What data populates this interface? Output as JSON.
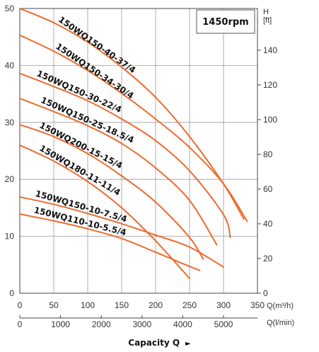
{
  "chart_data": {
    "type": "line",
    "speed_label": "1450rpm",
    "x_unit_label": "Q(m³/h)",
    "x2_unit_label": "Q(l/min)",
    "y_right_label_top": "H",
    "y_right_label_unit": "[ft]",
    "caption": "Capacity Q",
    "caption_arrow": "►",
    "xlim": [
      0,
      350
    ],
    "ylim": [
      0,
      50
    ],
    "x_ticks": [
      0,
      50,
      100,
      150,
      200,
      250,
      300,
      350
    ],
    "y_ticks": [
      0,
      10,
      20,
      30,
      40,
      50
    ],
    "x2_ticks": [
      0,
      1000,
      2000,
      3000,
      4000,
      5000
    ],
    "y_right_ticks": [
      0,
      20,
      40,
      60,
      80,
      100,
      120,
      140
    ],
    "grid": true,
    "series": [
      {
        "name": "150WQ150-40-37/4",
        "x": [
          0,
          50,
          100,
          150,
          200,
          250,
          300,
          330
        ],
        "y": [
          50,
          47.5,
          44.1,
          39.7,
          34.4,
          27.5,
          19.2,
          13.0
        ]
      },
      {
        "name": "150WQ150-34-30/4",
        "x": [
          0,
          50,
          100,
          150,
          200,
          250,
          300,
          335
        ],
        "y": [
          45.3,
          42.5,
          39.1,
          35.1,
          30.6,
          25.6,
          19.2,
          12.6
        ]
      },
      {
        "name": "150WQ150-30-22/4",
        "x": [
          0,
          50,
          100,
          150,
          200,
          250,
          300,
          310
        ],
        "y": [
          38.6,
          36.3,
          33.8,
          30.6,
          26.8,
          21.5,
          13.8,
          9.8
        ]
      },
      {
        "name": "150WQ150-25-18.5/4",
        "x": [
          0,
          50,
          100,
          150,
          200,
          250,
          290
        ],
        "y": [
          34.2,
          31.9,
          29.4,
          26.3,
          22.0,
          16.3,
          8.5
        ]
      },
      {
        "name": "150WQ200-15-15/4",
        "x": [
          0,
          50,
          100,
          150,
          200,
          250,
          270
        ],
        "y": [
          29.6,
          27.5,
          24.5,
          20.6,
          16.0,
          9.8,
          6.0
        ]
      },
      {
        "name": "150WQ180-11-11/4",
        "x": [
          0,
          50,
          100,
          150,
          200,
          250
        ],
        "y": [
          26.0,
          23.2,
          19.6,
          15.0,
          9.2,
          2.6
        ]
      },
      {
        "name": "150WQ150-10-7.5/4",
        "x": [
          0,
          50,
          100,
          150,
          200,
          250,
          300
        ],
        "y": [
          16.9,
          15.6,
          14.0,
          12.2,
          10.2,
          8.1,
          4.6
        ]
      },
      {
        "name": "150WQ110-10-5.5/4",
        "x": [
          0,
          50,
          100,
          150,
          200,
          240,
          265
        ],
        "y": [
          13.9,
          12.7,
          11.3,
          9.6,
          7.2,
          5.2,
          4.0
        ]
      }
    ],
    "series_color": "#ee6a2e"
  }
}
